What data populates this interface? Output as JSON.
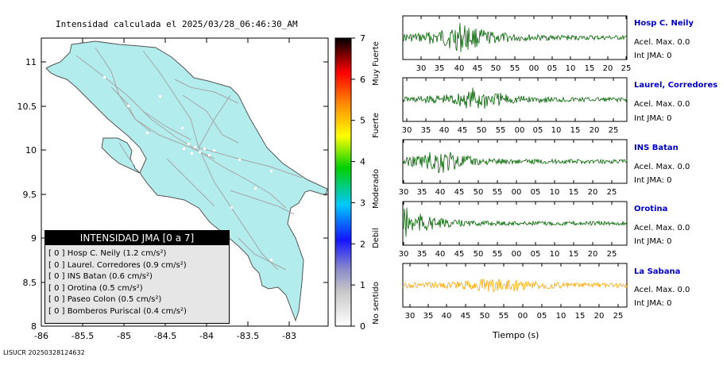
{
  "map": {
    "title": "Intensidad calculada el 2025/03/28_06:46:30_AM",
    "lon_ticks": [
      "-86",
      "-85.5",
      "-85",
      "-84.5",
      "-84",
      "-83.5",
      "-83"
    ],
    "lat_ticks": [
      "11",
      "10.5",
      "10",
      "9.5",
      "9",
      "8.5",
      "8"
    ],
    "land_color": "#b3ecec",
    "roads_color": "#a6a6a6"
  },
  "colorbar": {
    "ticks": [
      "7",
      "6",
      "5",
      "4",
      "3",
      "2",
      "1",
      "0"
    ],
    "labels": [
      "Muy Fuerte",
      "Fuerte",
      "Moderado",
      "Debil",
      "No sentido"
    ]
  },
  "legend": {
    "title": "INTENSIDAD JMA [0 a 7]",
    "rows": [
      {
        "text": "[ 0 ]  Hosp C. Neily (1.2 cm/s²)"
      },
      {
        "text": "[ 0 ]  Laurel. Corredores (0.9 cm/s²)"
      },
      {
        "text": "[ 0 ]  INS Batan (0.6 cm/s²)"
      },
      {
        "text": "[ 0 ]  Orotina (0.5 cm/s²)"
      },
      {
        "text": "[ 0 ]  Paseo Colon (0.5 cm/s²)"
      },
      {
        "text": "[ 0 ]  Bomberos Puriscal (0.4 cm/s²)"
      }
    ]
  },
  "stations": [
    {
      "name": "Hosp C. Neily",
      "acel": "Acel. Max. 0.0",
      "int": "Int JMA: 0",
      "color": "#006400",
      "ticks": [
        "30",
        "35",
        "40",
        "45",
        "50",
        "55",
        "00",
        "05",
        "10",
        "15",
        "20",
        "25"
      ]
    },
    {
      "name": "Laurel, Corredores",
      "acel": "Acel. Max. 0.0",
      "int": "Int JMA: 0",
      "color": "#006400",
      "ticks": [
        "30",
        "35",
        "40",
        "45",
        "50",
        "55",
        "00",
        "05",
        "10",
        "15",
        "20",
        "25"
      ]
    },
    {
      "name": "INS Batan",
      "acel": "Acel. Max. 0.0",
      "int": "Int JMA: 0",
      "color": "#006400",
      "ticks": [
        "30",
        "35",
        "40",
        "45",
        "50",
        "55",
        "00",
        "05",
        "10",
        "15",
        "20",
        "25"
      ]
    },
    {
      "name": "Orotina",
      "acel": "Acel. Max. 0.0",
      "int": "Int JMA: 0",
      "color": "#006400",
      "ticks": [
        "30",
        "35",
        "40",
        "45",
        "50",
        "55",
        "00",
        "05",
        "10",
        "15",
        "20",
        "25"
      ]
    },
    {
      "name": "La Sabana",
      "acel": "Acel. Max. 0.0",
      "int": "Int JMA: 0",
      "color": "#ffa500",
      "ticks": [
        "30",
        "35",
        "40",
        "45",
        "50",
        "55",
        "00",
        "05",
        "10",
        "15",
        "20",
        "25"
      ]
    }
  ],
  "xlabel": "Tiempo (s)",
  "footer": "LISUCR 20250328124632"
}
